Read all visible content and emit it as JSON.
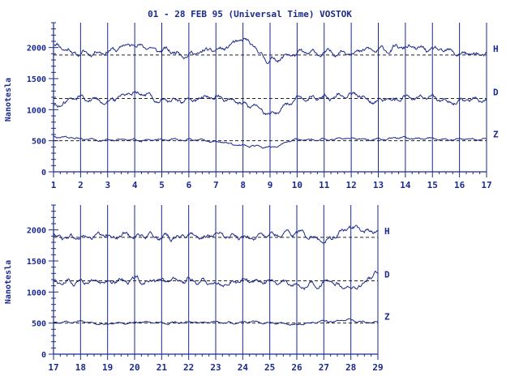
{
  "chart_data": [
    {
      "type": "line",
      "title": "01 - 28 FEB 95 (Universal Time) VOSTOK",
      "ylabel": "Nanotesla",
      "xlabel": "",
      "xlim": [
        1,
        17
      ],
      "ylim": [
        0,
        2400
      ],
      "x_ticks": [
        "1",
        "2",
        "3",
        "4",
        "5",
        "6",
        "7",
        "8",
        "9",
        "10",
        "11",
        "12",
        "13",
        "14",
        "15",
        "16",
        "17"
      ],
      "y_ticks": [
        "0",
        "500",
        "1000",
        "1500",
        "2000"
      ],
      "grid": "vertical lines at each day",
      "series": [
        {
          "name": "H",
          "baseline": 1880,
          "x": [
            1,
            2,
            3,
            4,
            5,
            6,
            7,
            8,
            9,
            10,
            11,
            12,
            13,
            14,
            15,
            16,
            17
          ],
          "values": [
            2050,
            1900,
            1950,
            2050,
            1950,
            1900,
            1950,
            2100,
            1800,
            1900,
            1900,
            1950,
            1950,
            2000,
            1950,
            1900,
            1880
          ]
        },
        {
          "name": "D",
          "baseline": 1180,
          "x": [
            1,
            2,
            3,
            4,
            5,
            6,
            7,
            8,
            9,
            10,
            11,
            12,
            13,
            14,
            15,
            16,
            17
          ],
          "values": [
            1050,
            1200,
            1150,
            1300,
            1150,
            1150,
            1200,
            1100,
            950,
            1150,
            1200,
            1250,
            1150,
            1200,
            1150,
            1150,
            1180
          ]
        },
        {
          "name": "Z",
          "baseline": 500,
          "x": [
            1,
            2,
            3,
            4,
            5,
            6,
            7,
            8,
            9,
            10,
            11,
            12,
            13,
            14,
            15,
            16,
            17
          ],
          "values": [
            560,
            540,
            520,
            520,
            510,
            520,
            480,
            420,
            400,
            500,
            520,
            540,
            520,
            540,
            520,
            520,
            520
          ]
        }
      ]
    },
    {
      "type": "line",
      "title": "",
      "ylabel": "Nanotesla",
      "xlabel": "",
      "xlim": [
        17,
        29
      ],
      "ylim": [
        0,
        2400
      ],
      "x_ticks": [
        "17",
        "18",
        "19",
        "20",
        "21",
        "22",
        "23",
        "24",
        "25",
        "26",
        "27",
        "28",
        "29"
      ],
      "y_ticks": [
        "0",
        "500",
        "1000",
        "1500",
        "2000"
      ],
      "grid": "vertical lines at each day",
      "series": [
        {
          "name": "H",
          "baseline": 1880,
          "x": [
            17,
            18,
            19,
            20,
            21,
            22,
            23,
            24,
            25,
            26,
            27,
            28,
            29
          ],
          "values": [
            1900,
            1880,
            1900,
            1920,
            1880,
            1900,
            1900,
            1880,
            1900,
            1950,
            1850,
            2000,
            1950
          ]
        },
        {
          "name": "D",
          "baseline": 1180,
          "x": [
            17,
            18,
            19,
            20,
            21,
            22,
            23,
            24,
            25,
            26,
            27,
            28,
            29
          ],
          "values": [
            1150,
            1180,
            1170,
            1200,
            1150,
            1180,
            1150,
            1180,
            1170,
            1100,
            1150,
            1050,
            1300
          ]
        },
        {
          "name": "Z",
          "baseline": 500,
          "x": [
            17,
            18,
            19,
            20,
            21,
            22,
            23,
            24,
            25,
            26,
            27,
            28,
            29
          ],
          "values": [
            500,
            520,
            480,
            510,
            500,
            510,
            500,
            520,
            500,
            480,
            530,
            540,
            500
          ]
        }
      ]
    }
  ],
  "colors": {
    "ink": "#1a2a8c",
    "background": "#ffffff"
  }
}
